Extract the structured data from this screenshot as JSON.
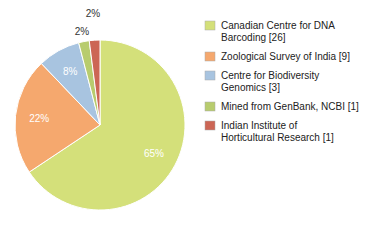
{
  "chart_data": {
    "type": "pie",
    "labels": [
      "Canadian Centre for DNA\nBarcoding [26]",
      "Zoological Survey of India [9]",
      "Centre for Biodiversity\nGenomics [3]",
      "Mined from GenBank, NCBI [1]",
      "Indian Institute of\nHorticultural Research [1]"
    ],
    "values": [
      65,
      22,
      8,
      2,
      2
    ],
    "value_labels": [
      "65%",
      "22%",
      "8%",
      "2%",
      "2%"
    ],
    "colors": [
      "#d4e07a",
      "#f5a86e",
      "#a8c4e0",
      "#b8cc6e",
      "#cc6655"
    ],
    "data_labels": true,
    "legend": "right"
  }
}
